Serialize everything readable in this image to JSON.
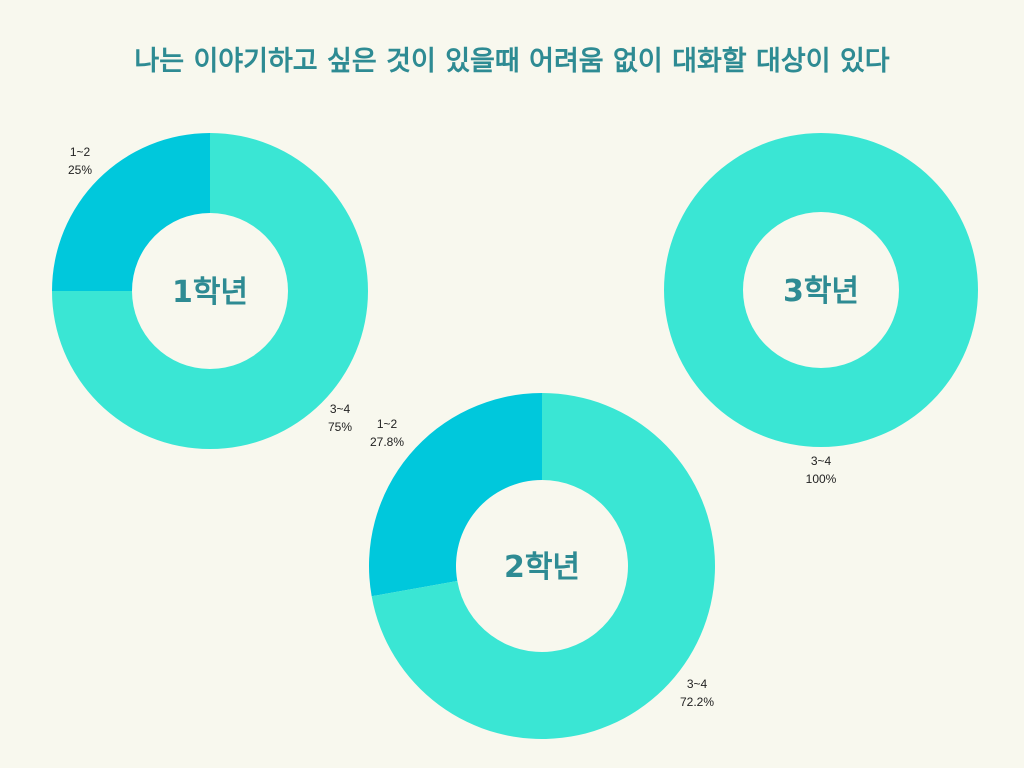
{
  "title": "나는 이야기하고 싶은 것이 있을때 어려움 없이 대화할 대상이 있다",
  "colors": {
    "background": "#f8f8ee",
    "title": "#2e8b93",
    "center_label": "#2e8b93",
    "series": {
      "1~2": "#00c8dc",
      "3~4": "#3ae6d4"
    }
  },
  "chart_data": [
    {
      "type": "pie",
      "center_label": "1학년",
      "slices": [
        {
          "label": "1~2",
          "value": 25,
          "display": "25%"
        },
        {
          "label": "3~4",
          "value": 75,
          "display": "75%"
        }
      ]
    },
    {
      "type": "pie",
      "center_label": "2학년",
      "slices": [
        {
          "label": "1~2",
          "value": 27.8,
          "display": "27.8%"
        },
        {
          "label": "3~4",
          "value": 72.2,
          "display": "72.2%"
        }
      ]
    },
    {
      "type": "pie",
      "center_label": "3학년",
      "slices": [
        {
          "label": "3~4",
          "value": 100,
          "display": "100%"
        }
      ]
    }
  ]
}
